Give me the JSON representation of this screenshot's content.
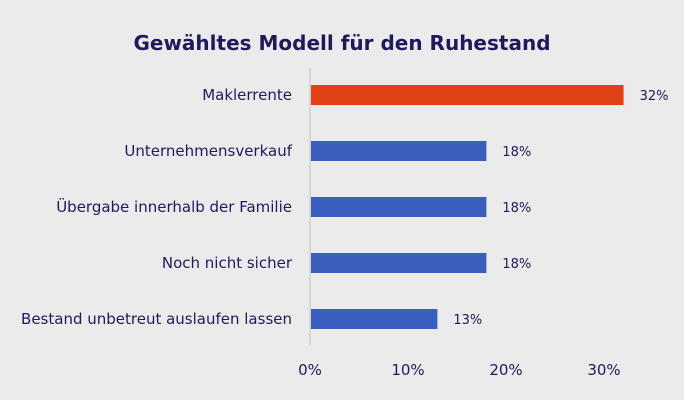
{
  "chart_data": {
    "type": "bar",
    "orientation": "horizontal",
    "title": "Gewähltes Modell für den Ruhestand",
    "categories": [
      "Maklerrente",
      "Unternehmensverkauf",
      "Übergabe innerhalb der Familie",
      "Noch nicht sicher",
      "Bestand unbetreut auslaufen lassen"
    ],
    "values": [
      32,
      18,
      18,
      18,
      13
    ],
    "data_labels": [
      "32%",
      "18%",
      "18%",
      "18%",
      "13%"
    ],
    "xlim": [
      0,
      30
    ],
    "x_ticks": [
      0,
      10,
      20,
      30
    ],
    "x_tick_labels": [
      "0%",
      "10%",
      "20%",
      "30%"
    ],
    "xlabel": "",
    "ylabel": "",
    "grid": false,
    "colors": {
      "highlight": "#e04117",
      "default": "#3a5fbf",
      "text": "#1f1a5c",
      "axis": "#bfbfbf",
      "background": "#ebebeb"
    },
    "highlight_index": 0
  }
}
